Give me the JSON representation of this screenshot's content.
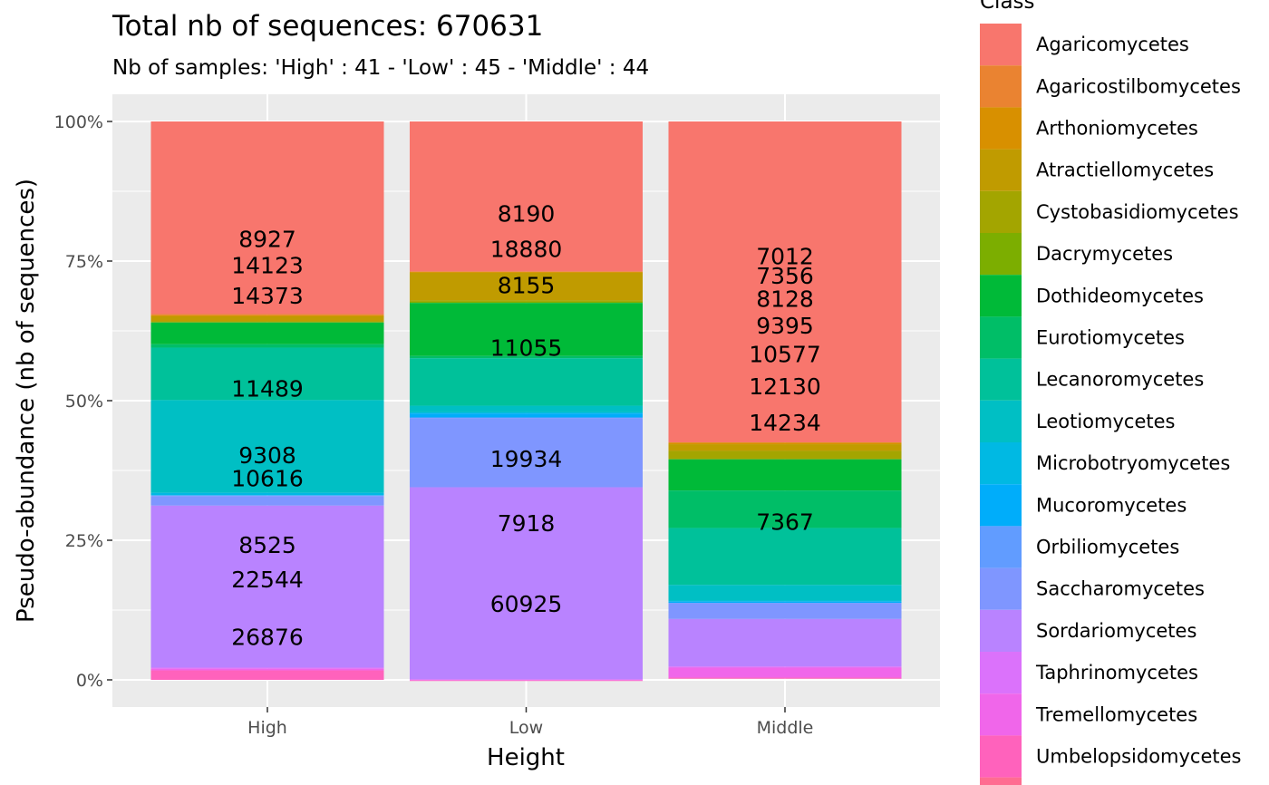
{
  "chart_data": {
    "type": "bar",
    "stacked": true,
    "percent_scale": true,
    "title": "Total nb of sequences:  670631",
    "subtitle": "Nb of samples: 'High' : 41 - 'Low' : 45 - 'Middle' : 44",
    "xlabel": "Height",
    "ylabel": "Pseudo-abundance (nb of sequences)",
    "ylim": [
      0,
      100
    ],
    "y_ticks": [
      "0%",
      "25%",
      "50%",
      "75%",
      "100%"
    ],
    "categories": [
      "High",
      "Low",
      "Middle"
    ],
    "legend_title": "Class",
    "legend_position": "right",
    "grid": true,
    "panel_background": "#ebebeb",
    "series": [
      {
        "name": "Agaricomycetes",
        "color": "#F8766D",
        "values": [
          34.5,
          26.9,
          57.5
        ]
      },
      {
        "name": "Agaricostilbomycetes",
        "color": "#EA8331",
        "values": [
          0.2,
          0.0,
          0.0
        ]
      },
      {
        "name": "Arthoniomycetes",
        "color": "#D89000",
        "values": [
          0.2,
          0.2,
          0.3
        ]
      },
      {
        "name": "Atractiellomycetes",
        "color": "#C09B00",
        "values": [
          0.9,
          4.9,
          1.2
        ]
      },
      {
        "name": "Cystobasidiomycetes",
        "color": "#A3A500",
        "values": [
          0.2,
          0.3,
          1.5
        ]
      },
      {
        "name": "Dacrymycetes",
        "color": "#7CAE00",
        "values": [
          0.0,
          0.2,
          0.0
        ]
      },
      {
        "name": "Dothideomycetes",
        "color": "#00BA38",
        "values": [
          3.9,
          9.5,
          5.6
        ]
      },
      {
        "name": "Eurotiomycetes",
        "color": "#00BE67",
        "values": [
          0.6,
          0.4,
          6.7
        ]
      },
      {
        "name": "Lecanoromycetes",
        "color": "#00C19A",
        "values": [
          9.4,
          8.5,
          10.2
        ]
      },
      {
        "name": "Leotiomycetes",
        "color": "#00BFC4",
        "values": [
          16.6,
          1.2,
          2.8
        ]
      },
      {
        "name": "Microbotryomycetes",
        "color": "#00B9E3",
        "values": [
          0.4,
          0.2,
          0.2
        ]
      },
      {
        "name": "Mucoromycetes",
        "color": "#00ADFA",
        "values": [
          0.1,
          0.7,
          0.2
        ]
      },
      {
        "name": "Orbiliomycetes",
        "color": "#619CFF",
        "values": [
          0.1,
          0.1,
          0.1
        ]
      },
      {
        "name": "Saccharomycetes",
        "color": "#7F96FF",
        "values": [
          1.7,
          12.4,
          2.8
        ]
      },
      {
        "name": "Sordariomycetes",
        "color": "#B983FF",
        "values": [
          29.0,
          34.4,
          8.5
        ]
      },
      {
        "name": "Taphrinomycetes",
        "color": "#DB72FB",
        "values": [
          0.2,
          0.1,
          0.2
        ]
      },
      {
        "name": "Tremellomycetes",
        "color": "#F066EA",
        "values": [
          0.3,
          0.1,
          1.8
        ]
      },
      {
        "name": "Umbelopsidomycetes",
        "color": "#FF62BC",
        "values": [
          1.7,
          0.1,
          0.2
        ]
      },
      {
        "color": "#FF6C91",
        "values": [
          0.0,
          0.0,
          0.0
        ]
      }
    ],
    "data_labels": [
      {
        "category": "High",
        "items": [
          {
            "text": "8927",
            "y": 79.0
          },
          {
            "text": "14123",
            "y": 74.3
          },
          {
            "text": "14373",
            "y": 68.8
          },
          {
            "text": "11489",
            "y": 52.2
          },
          {
            "text": "9308",
            "y": 40.3
          },
          {
            "text": "10616",
            "y": 36.1
          },
          {
            "text": "8525",
            "y": 24.2
          },
          {
            "text": "22544",
            "y": 18.0
          },
          {
            "text": "26876",
            "y": 7.7
          }
        ]
      },
      {
        "category": "Low",
        "items": [
          {
            "text": "8190",
            "y": 83.5
          },
          {
            "text": "18880",
            "y": 77.2
          },
          {
            "text": "8155",
            "y": 70.7
          },
          {
            "text": "11055",
            "y": 59.5
          },
          {
            "text": "19934",
            "y": 39.6
          },
          {
            "text": "7918",
            "y": 28.1
          },
          {
            "text": "60925",
            "y": 13.6
          }
        ]
      },
      {
        "category": "Middle",
        "items": [
          {
            "text": "7012",
            "y": 75.9
          },
          {
            "text": "7356",
            "y": 72.4
          },
          {
            "text": "8128",
            "y": 68.3
          },
          {
            "text": "9395",
            "y": 63.5
          },
          {
            "text": "10577",
            "y": 58.4
          },
          {
            "text": "12130",
            "y": 52.6
          },
          {
            "text": "14234",
            "y": 46.1
          },
          {
            "text": "7367",
            "y": 28.3
          }
        ]
      }
    ]
  }
}
